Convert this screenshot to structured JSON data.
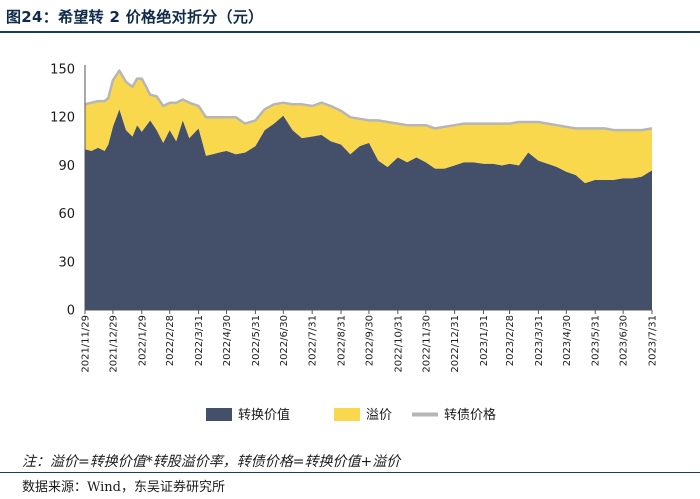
{
  "figure_title": "图24：希望转 2 价格绝对折分（元）",
  "note": "注：溢价=转换价值*转股溢价率，转债价格=转换价值+溢价",
  "source": "数据来源：Wind，东吴证券研究所",
  "colors": {
    "conversion_value": "#44506a",
    "premium": "#f9d84e",
    "bond_price": "#b6b6b6"
  },
  "chart_data": {
    "type": "area",
    "title": "",
    "xlabel": "",
    "ylabel": "",
    "ylim": [
      0,
      150
    ],
    "yticks": [
      0,
      30,
      60,
      90,
      120,
      150
    ],
    "x_ticks": [
      "2021/11/29",
      "2021/12/29",
      "2022/1/29",
      "2022/2/28",
      "2022/3/31",
      "2022/4/30",
      "2022/5/31",
      "2022/6/30",
      "2022/7/31",
      "2022/8/31",
      "2022/9/30",
      "2022/10/31",
      "2022/11/30",
      "2022/12/31",
      "2023/1/31",
      "2023/2/28",
      "2023/3/31",
      "2023/4/30",
      "2023/5/31",
      "2023/6/30",
      "2023/7/31"
    ],
    "legend_position": "bottom",
    "grid": false,
    "x": [
      "2021/11/29",
      "2021/12/6",
      "2021/12/13",
      "2021/12/20",
      "2021/12/24",
      "2021/12/29",
      "2022/1/5",
      "2022/1/12",
      "2022/1/19",
      "2022/1/24",
      "2022/1/29",
      "2022/2/7",
      "2022/2/14",
      "2022/2/21",
      "2022/2/28",
      "2022/3/7",
      "2022/3/14",
      "2022/3/21",
      "2022/3/31",
      "2022/4/8",
      "2022/4/15",
      "2022/4/22",
      "2022/4/30",
      "2022/5/10",
      "2022/5/20",
      "2022/5/31",
      "2022/6/10",
      "2022/6/20",
      "2022/6/30",
      "2022/7/10",
      "2022/7/20",
      "2022/7/31",
      "2022/8/10",
      "2022/8/20",
      "2022/8/31",
      "2022/9/10",
      "2022/9/20",
      "2022/9/30",
      "2022/10/10",
      "2022/10/20",
      "2022/10/31",
      "2022/11/10",
      "2022/11/20",
      "2022/11/30",
      "2022/12/10",
      "2022/12/20",
      "2022/12/31",
      "2023/1/10",
      "2023/1/20",
      "2023/1/31",
      "2023/2/10",
      "2023/2/20",
      "2023/2/28",
      "2023/3/10",
      "2023/3/20",
      "2023/3/31",
      "2023/4/10",
      "2023/4/20",
      "2023/4/30",
      "2023/5/10",
      "2023/5/20",
      "2023/5/31",
      "2023/6/10",
      "2023/6/20",
      "2023/6/30",
      "2023/7/10",
      "2023/7/20",
      "2023/7/31"
    ],
    "series": [
      {
        "name": "转换价值",
        "values": [
          100,
          99,
          101,
          99,
          103,
          114,
          125,
          112,
          108,
          115,
          111,
          118,
          112,
          104,
          112,
          105,
          118,
          107,
          113,
          96,
          97,
          98,
          99,
          97,
          98,
          102,
          112,
          116,
          121,
          112,
          107,
          108,
          109,
          105,
          103,
          97,
          102,
          104,
          93,
          89,
          95,
          92,
          95,
          92,
          88,
          88,
          90,
          92,
          92,
          91,
          91,
          90,
          91,
          90,
          98,
          93,
          91,
          89,
          86,
          84,
          79,
          81,
          81,
          81,
          82,
          82,
          83,
          87
        ]
      },
      {
        "name": "溢价",
        "values": [
          28,
          30,
          29,
          31,
          29,
          29,
          24,
          30,
          31,
          29,
          33,
          16,
          21,
          23,
          17,
          24,
          13,
          22,
          14,
          24,
          23,
          22,
          21,
          23,
          18,
          16,
          13,
          12,
          8,
          16,
          21,
          19,
          20,
          22,
          21,
          23,
          17,
          14,
          25,
          28,
          21,
          23,
          20,
          23,
          25,
          26,
          25,
          24,
          24,
          25,
          25,
          26,
          25,
          27,
          19,
          24,
          25,
          26,
          28,
          29,
          34,
          32,
          32,
          31,
          30,
          30,
          29,
          26
        ]
      },
      {
        "name": "转债价格",
        "values": [
          128,
          129,
          130,
          130,
          132,
          143,
          149,
          142,
          139,
          144,
          144,
          134,
          133,
          127,
          129,
          129,
          131,
          129,
          127,
          120,
          120,
          120,
          120,
          120,
          116,
          118,
          125,
          128,
          129,
          128,
          128,
          127,
          129,
          127,
          124,
          120,
          119,
          118,
          118,
          117,
          116,
          115,
          115,
          115,
          113,
          114,
          115,
          116,
          116,
          116,
          116,
          116,
          116,
          117,
          117,
          117,
          116,
          115,
          114,
          113,
          113,
          113,
          113,
          112,
          112,
          112,
          112,
          113
        ]
      }
    ]
  }
}
